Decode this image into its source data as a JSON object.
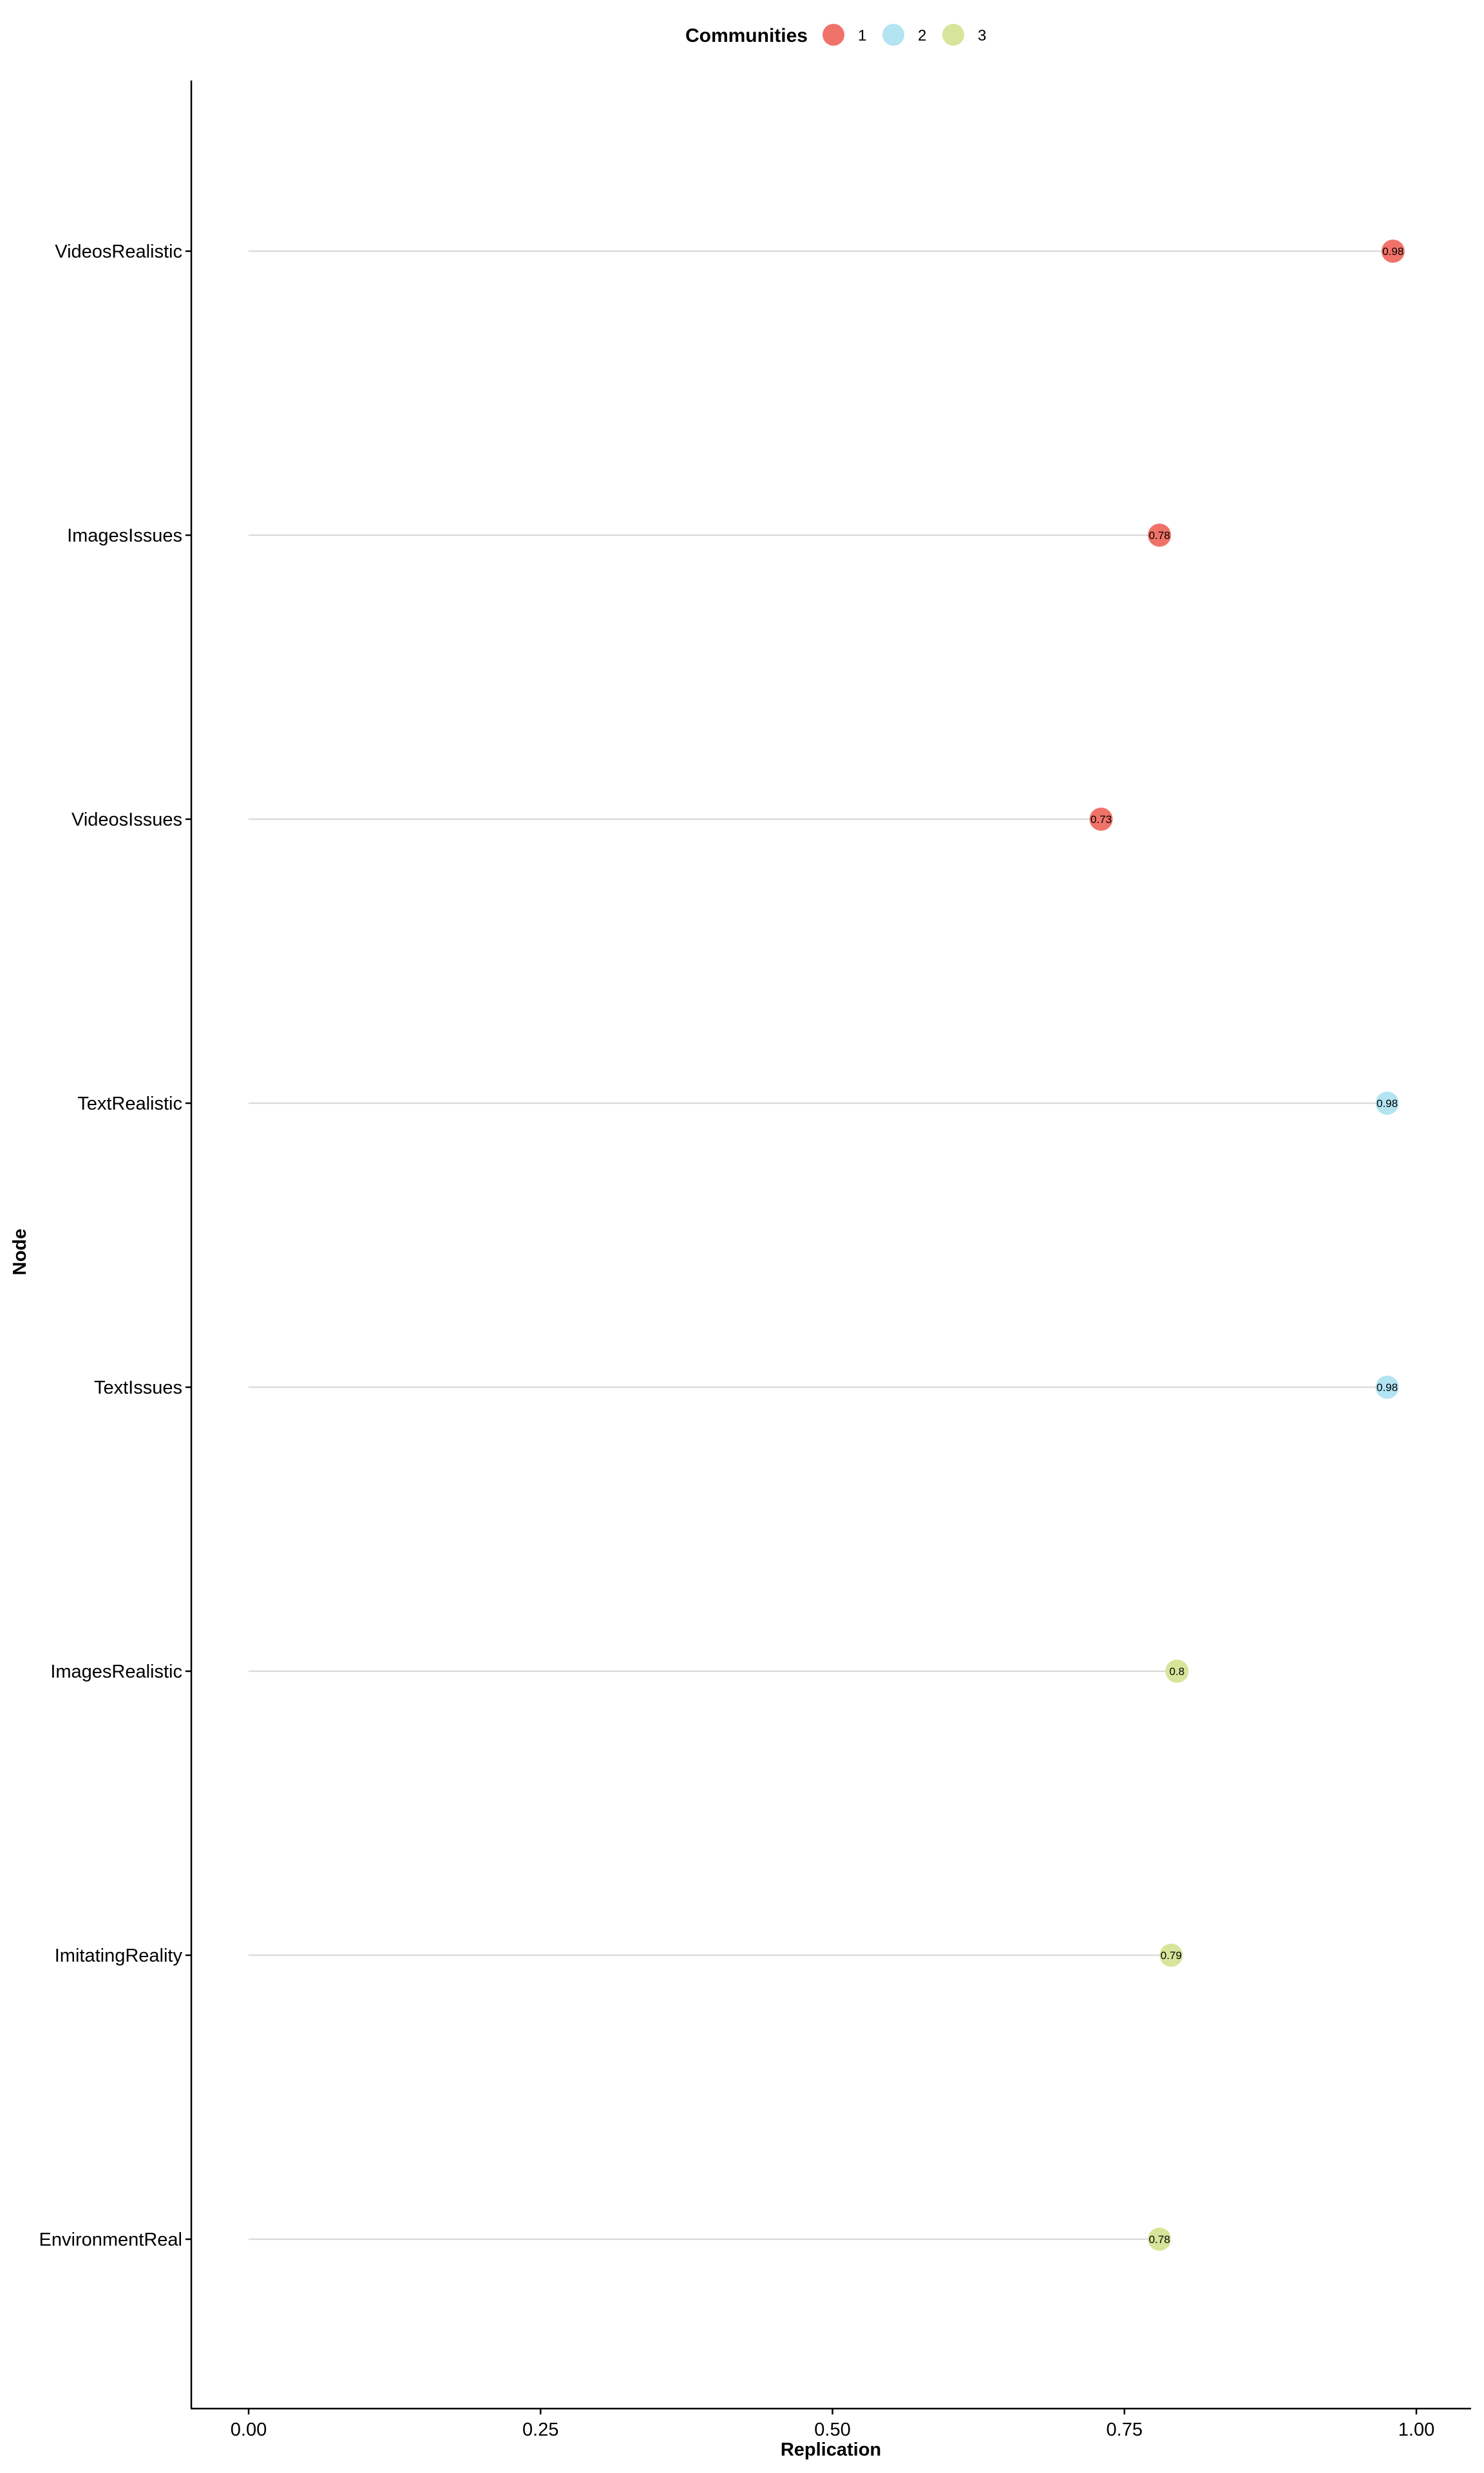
{
  "chart_data": {
    "type": "lollipop",
    "title": "",
    "xlabel": "Replication",
    "ylabel": "Node",
    "xlim": [
      -0.05,
      1.05
    ],
    "xticks": [
      0.0,
      0.25,
      0.5,
      0.75,
      1.0
    ],
    "xtick_labels": [
      "0.00",
      "0.25",
      "0.50",
      "0.75",
      "1.00"
    ],
    "grid": false,
    "legend": {
      "title": "Communities",
      "position": "top",
      "entries": [
        {
          "label": "1",
          "color": "#F07369"
        },
        {
          "label": "2",
          "color": "#B2E4F2"
        },
        {
          "label": "3",
          "color": "#D6E59A"
        }
      ]
    },
    "points": [
      {
        "node": "VideosRealistic",
        "value": 0.98,
        "label": "0.98",
        "community": "1"
      },
      {
        "node": "ImagesIssues",
        "value": 0.78,
        "label": "0.78",
        "community": "1"
      },
      {
        "node": "VideosIssues",
        "value": 0.73,
        "label": "0.73",
        "community": "1"
      },
      {
        "node": "TextRealistic",
        "value": 0.975,
        "label": "0.98",
        "community": "2"
      },
      {
        "node": "TextIssues",
        "value": 0.975,
        "label": "0.98",
        "community": "2"
      },
      {
        "node": "ImagesRealistic",
        "value": 0.795,
        "label": "0.8",
        "community": "3"
      },
      {
        "node": "ImitatingReality",
        "value": 0.79,
        "label": "0.79",
        "community": "3"
      },
      {
        "node": "EnvironmentReal",
        "value": 0.78,
        "label": "0.78",
        "community": "3"
      }
    ],
    "stem_color": "#d9d9d9"
  }
}
